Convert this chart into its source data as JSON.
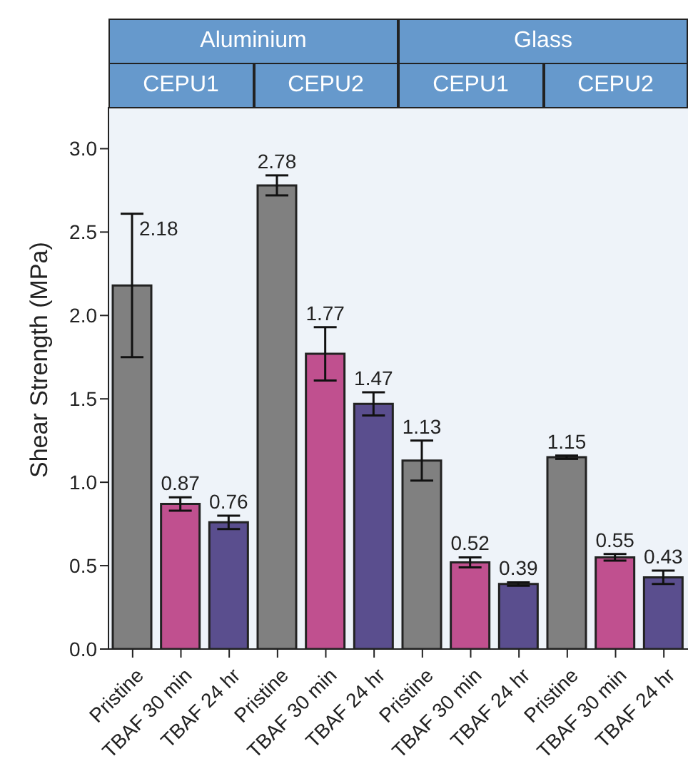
{
  "chart_data": {
    "type": "bar",
    "ylabel": "Shear Strength (MPa)",
    "categories": [
      "Pristine",
      "TBAF 30 min",
      "TBAF 24 hr",
      "Pristine",
      "TBAF 30 min",
      "TBAF 24 hr",
      "Pristine",
      "TBAF 30 min",
      "TBAF 24 hr",
      "Pristine",
      "TBAF 30 min",
      "TBAF 24 hr"
    ],
    "values": [
      2.18,
      0.87,
      0.76,
      2.78,
      1.77,
      1.47,
      1.13,
      0.52,
      0.39,
      1.15,
      0.55,
      0.43
    ],
    "errors": [
      0.43,
      0.04,
      0.04,
      0.06,
      0.16,
      0.07,
      0.12,
      0.03,
      0.01,
      0.01,
      0.02,
      0.04
    ],
    "colors": [
      "#808080",
      "#c0508f",
      "#5a4e8e",
      "#808080",
      "#c0508f",
      "#5a4e8e",
      "#808080",
      "#c0508f",
      "#5a4e8e",
      "#808080",
      "#c0508f",
      "#5a4e8e"
    ],
    "data_labels": true,
    "ylim": [
      0,
      3.25
    ],
    "yticks": [
      {
        "value": 0,
        "label": "0.0"
      },
      {
        "value": 0.5,
        "label": "0.5"
      },
      {
        "value": 1,
        "label": "1.0"
      },
      {
        "value": 1.5,
        "label": "1.5"
      },
      {
        "value": 2,
        "label": "2.0"
      },
      {
        "value": 2.5,
        "label": "2.5"
      },
      {
        "value": 3,
        "label": "3.0"
      }
    ],
    "annotations": [
      "Aluminium",
      "Glass",
      "CEPU1",
      "CEPU2",
      "CEPU1",
      "CEPU2"
    ],
    "grid": false,
    "legend": false
  }
}
